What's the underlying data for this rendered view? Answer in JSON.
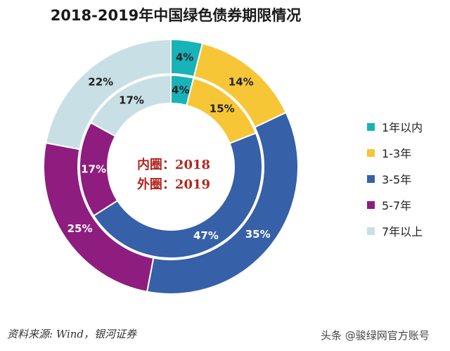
{
  "chart_data": {
    "type": "pie",
    "subtype": "double-donut",
    "title": "2018-2019年中国绿色债券期限情况",
    "categories": [
      "1年以内",
      "1-3年",
      "3-5年",
      "5-7年",
      "7年以上"
    ],
    "colors": [
      "#17b3b8",
      "#f6c637",
      "#3660a7",
      "#8e1d7f",
      "#c9dfe6"
    ],
    "label_colors": [
      "#222222",
      "#222222",
      "#ffffff",
      "#ffffff",
      "#222222"
    ],
    "series": [
      {
        "name": "内圈：2018",
        "ring": "inner",
        "values": [
          4,
          15,
          47,
          17,
          17
        ]
      },
      {
        "name": "外圈：2019",
        "ring": "outer",
        "values": [
          4,
          14,
          35,
          25,
          22
        ]
      }
    ],
    "legend_position": "right"
  },
  "center": {
    "line1": "内圈：2018",
    "line2": "外圈：2019"
  },
  "source": "资料来源: Wind，银河证券",
  "watermark": "头条 @骏绿网官方账号"
}
